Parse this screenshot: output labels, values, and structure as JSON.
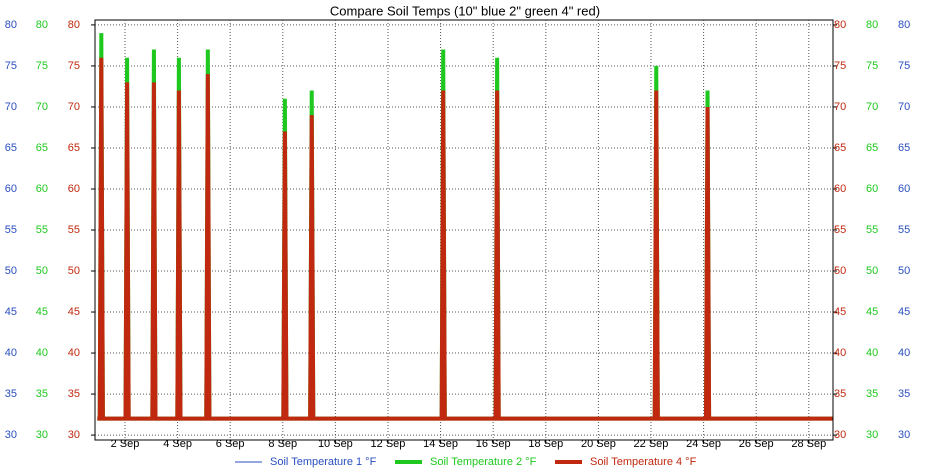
{
  "chart_data": {
    "type": "line",
    "title": "Compare Soil Temps  (10\" blue 2\" green 4\" red)",
    "x": [
      0.95,
      1.04,
      1.1,
      1.16,
      2.02,
      2.08,
      2.14,
      3.04,
      3.1,
      3.16,
      3.99,
      4.05,
      4.11,
      5.09,
      5.15,
      5.21,
      8.02,
      8.08,
      8.14,
      9.04,
      9.1,
      9.16,
      14.04,
      14.1,
      14.16,
      16.09,
      16.15,
      16.21,
      22.14,
      22.2,
      22.26,
      24.09,
      24.15,
      24.21,
      28.9
    ],
    "series": [
      {
        "name": "Soil Temperature 1 °F",
        "color": "#2a4fc0",
        "width": 1,
        "values": [
          32,
          32,
          32,
          32,
          32,
          32,
          32,
          32,
          32,
          32,
          32,
          32,
          32,
          32,
          32,
          32,
          32,
          32,
          32,
          32,
          32,
          32,
          32,
          32,
          32,
          32,
          32,
          32,
          32,
          32,
          32,
          32,
          32,
          32,
          32
        ]
      },
      {
        "name": "Soil Temperature 2 °F",
        "color": "#1ec81e",
        "width": 4,
        "values": [
          32,
          32,
          79,
          32,
          32,
          76,
          32,
          32,
          77,
          32,
          32,
          76,
          32,
          32,
          77,
          32,
          32,
          71,
          32,
          32,
          72,
          32,
          32,
          77,
          32,
          32,
          76,
          32,
          32,
          75,
          32,
          32,
          72,
          32,
          32
        ]
      },
      {
        "name": "Soil Temperature 4 °F",
        "color": "#c0290f",
        "width": 4,
        "values": [
          32,
          32,
          76,
          32,
          32,
          73,
          32,
          32,
          73,
          32,
          32,
          72,
          32,
          32,
          74,
          32,
          32,
          67,
          32,
          32,
          69,
          32,
          32,
          72,
          32,
          32,
          72,
          32,
          32,
          72,
          32,
          32,
          70,
          32,
          32
        ]
      }
    ],
    "xlim": [
      0.86,
      28.92
    ],
    "xticks": [
      {
        "value": 2,
        "label": "2 Sep"
      },
      {
        "value": 4,
        "label": "4 Sep"
      },
      {
        "value": 6,
        "label": "6 Sep"
      },
      {
        "value": 8,
        "label": "8 Sep"
      },
      {
        "value": 10,
        "label": "10 Sep"
      },
      {
        "value": 12,
        "label": "12 Sep"
      },
      {
        "value": 14,
        "label": "14 Sep"
      },
      {
        "value": 16,
        "label": "16 Sep"
      },
      {
        "value": 18,
        "label": "18 Sep"
      },
      {
        "value": 20,
        "label": "20 Sep"
      },
      {
        "value": 22,
        "label": "22 Sep"
      },
      {
        "value": 24,
        "label": "24 Sep"
      },
      {
        "value": 26,
        "label": "26 Sep"
      },
      {
        "value": 28,
        "label": "28 Sep"
      }
    ],
    "ylim": [
      29.4,
      80.6
    ],
    "yticks": [
      30,
      35,
      40,
      45,
      50,
      55,
      60,
      65,
      70,
      75,
      80
    ],
    "grid": true,
    "legend": "bottom"
  }
}
